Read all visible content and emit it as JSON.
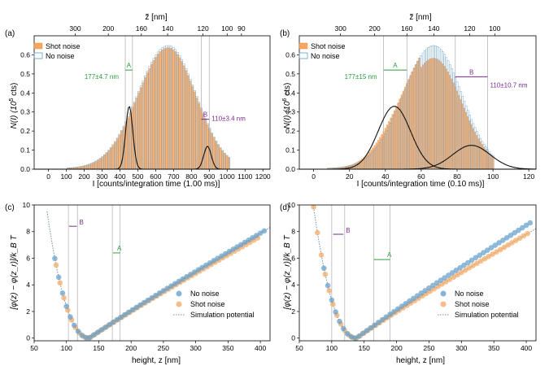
{
  "colors": {
    "shot": "#f5a661",
    "shot_edge": "#e88a3a",
    "nonoise": "#5f9cc9",
    "fit": "#111111",
    "sim": "#6f8fa8",
    "green": "#2a9d3c",
    "purple": "#7a2b8f",
    "vline": "#b5b5b5"
  },
  "chart_data": [
    {
      "id": "a",
      "type": "bar",
      "panel_label": "(a)",
      "title": "",
      "xlabel": "I [counts/integration time (1.00 ms)]",
      "ylabel": "N(I) (10^5 cts)",
      "ylabel_main": "N(I) (10",
      "ylabel_exp": "5",
      "ylabel_tail": " cts)",
      "top_axis_label": "z̃ [nm]",
      "xlim": [
        -80,
        1240
      ],
      "ylim": [
        0,
        0.7
      ],
      "xticks": [
        0,
        100,
        200,
        300,
        400,
        500,
        600,
        700,
        800,
        900,
        1000,
        1100,
        1200
      ],
      "yticks": [
        0,
        0.1,
        0.2,
        0.3,
        0.4,
        0.5,
        0.6
      ],
      "yticklabels": [
        "0.0",
        "0.1",
        "0.2",
        "0.3",
        "0.4",
        "0.5",
        "0.6"
      ],
      "top_ticks": [
        {
          "label": "300",
          "x": 150
        },
        {
          "label": "200",
          "x": 335
        },
        {
          "label": "160",
          "x": 520
        },
        {
          "label": "140",
          "x": 667
        },
        {
          "label": "120",
          "x": 865
        },
        {
          "label": "100",
          "x": 1000
        },
        {
          "label": "90",
          "x": 1080
        }
      ],
      "hist": {
        "bin_width": 12,
        "start": 110,
        "end": 1010,
        "peak": 0.645,
        "mu": 670,
        "sigma_left": 170,
        "sigma_right": 155,
        "shot_scale": 0.985
      },
      "fits": [
        {
          "mu": 452,
          "sigma": 20,
          "amp": 0.33
        },
        {
          "mu": 890,
          "sigma": 21,
          "amp": 0.12
        }
      ],
      "vlines": [
        430,
        470,
        855,
        900
      ],
      "legend": [
        "Shot noise",
        "No noise"
      ],
      "annotations": {
        "A": {
          "letter": "A",
          "text": "177±4.7 nm",
          "bar": [
            430,
            470
          ],
          "y": 0.52
        },
        "B": {
          "letter": "B",
          "text": "110±3.4 nm",
          "bar": [
            855,
            900
          ],
          "y": 0.262
        }
      }
    },
    {
      "id": "b",
      "type": "bar",
      "panel_label": "(b)",
      "title": "",
      "xlabel": "I [counts/integration time (0.10 ms)]",
      "ylabel": "N(I) (10^6 cts)",
      "ylabel_main": "N(I) (10",
      "ylabel_exp": "6",
      "ylabel_tail": " cts)",
      "top_axis_label": "z̃ [nm]",
      "xlim": [
        -8,
        124
      ],
      "ylim": [
        0,
        0.7
      ],
      "xticks": [
        0,
        20,
        40,
        60,
        80,
        100,
        120
      ],
      "yticks": [
        0,
        0.1,
        0.2,
        0.3,
        0.4,
        0.5,
        0.6
      ],
      "yticklabels": [
        "0.0",
        "0.1",
        "0.2",
        "0.3",
        "0.4",
        "0.5",
        "0.6"
      ],
      "top_ticks": [
        {
          "label": "300",
          "x": 15
        },
        {
          "label": "200",
          "x": 34
        },
        {
          "label": "160",
          "x": 52
        },
        {
          "label": "140",
          "x": 67
        },
        {
          "label": "120",
          "x": 87
        },
        {
          "label": "100",
          "x": 101
        }
      ],
      "hist": {
        "bin_width": 1,
        "start": 8,
        "end": 100,
        "peak": 0.645,
        "mu": 67,
        "sigma_left": 17,
        "sigma_right": 15.5,
        "shot_scale": 0.9
      },
      "fits": [
        {
          "mu": 45,
          "sigma": 9,
          "amp": 0.33
        },
        {
          "mu": 88,
          "sigma": 10.5,
          "amp": 0.125
        }
      ],
      "vlines": [
        39,
        52,
        79,
        97
      ],
      "legend": [
        "Shot noise",
        "No noise"
      ],
      "annotations": {
        "A": {
          "letter": "A",
          "text": "177±15 nm",
          "bar": [
            39,
            52
          ],
          "y": 0.52
        },
        "B": {
          "letter": "B",
          "text": "110±10.7 nm",
          "bar": [
            79,
            97
          ],
          "y": 0.485
        }
      }
    },
    {
      "id": "c",
      "type": "scatter",
      "panel_label": "(c)",
      "title": "",
      "xlabel": "height, z [nm]",
      "ylabel": "[φ(z) − φ(z_r)]/k_B T",
      "xlim": [
        50,
        415
      ],
      "ylim": [
        -0.2,
        10
      ],
      "xticks": [
        50,
        100,
        150,
        200,
        250,
        300,
        350,
        400
      ],
      "yticks": [
        0,
        2,
        4,
        6,
        8,
        10
      ],
      "yticklabels": [
        "0",
        "2",
        "4",
        "6",
        "8",
        "10"
      ],
      "potential": {
        "zmin": 135,
        "a": 0.0006,
        "b": 0.0185,
        "c": 0.32,
        "d": 0.002
      },
      "no_noise": {
        "z0": 82,
        "z1": 408,
        "step": 6,
        "dev": 0.0
      },
      "shot_noise": {
        "z0": 84,
        "z1": 398,
        "step": 6,
        "dev": -0.25
      },
      "vlines": [
        103,
        117,
        171,
        183
      ],
      "legend": [
        "No noise",
        "Shot noise",
        "Simulation potential"
      ],
      "annotations": {
        "A": {
          "letter": "A",
          "bar": [
            172,
            183
          ],
          "y": 6.4,
          "color": "green"
        },
        "B": {
          "letter": "B",
          "bar": [
            104,
            116
          ],
          "y": 8.4,
          "color": "purple"
        }
      }
    },
    {
      "id": "d",
      "type": "scatter",
      "panel_label": "(d)",
      "title": "",
      "xlabel": "height, z [nm]",
      "ylabel": "[φ(z) − φ(z_r)]/k_B T",
      "xlim": [
        50,
        415
      ],
      "ylim": [
        -0.2,
        10
      ],
      "xticks": [
        50,
        100,
        150,
        200,
        250,
        300,
        350,
        400
      ],
      "yticks": [
        0,
        2,
        4,
        6,
        8,
        10
      ],
      "yticklabels": [
        "0",
        "2",
        "4",
        "6",
        "8",
        "10"
      ],
      "potential": {
        "zmin": 138,
        "a": 0.0006,
        "b": 0.0185,
        "c": 0.32,
        "d": 0.002
      },
      "no_noise": {
        "z0": 88,
        "z1": 410,
        "step": 6,
        "dev": 0.7
      },
      "shot_noise": {
        "z0": 66,
        "z1": 406,
        "step": 6,
        "dev": 0.0
      },
      "vlines": [
        100,
        120,
        165,
        190
      ],
      "legend": [
        "No noise",
        "Shot noise",
        "Simulation potential"
      ],
      "annotations": {
        "A": {
          "letter": "A",
          "bar": [
            165,
            190
          ],
          "y": 5.9,
          "color": "green"
        },
        "B": {
          "letter": "B",
          "bar": [
            102,
            118
          ],
          "y": 7.8,
          "color": "purple"
        }
      }
    }
  ]
}
